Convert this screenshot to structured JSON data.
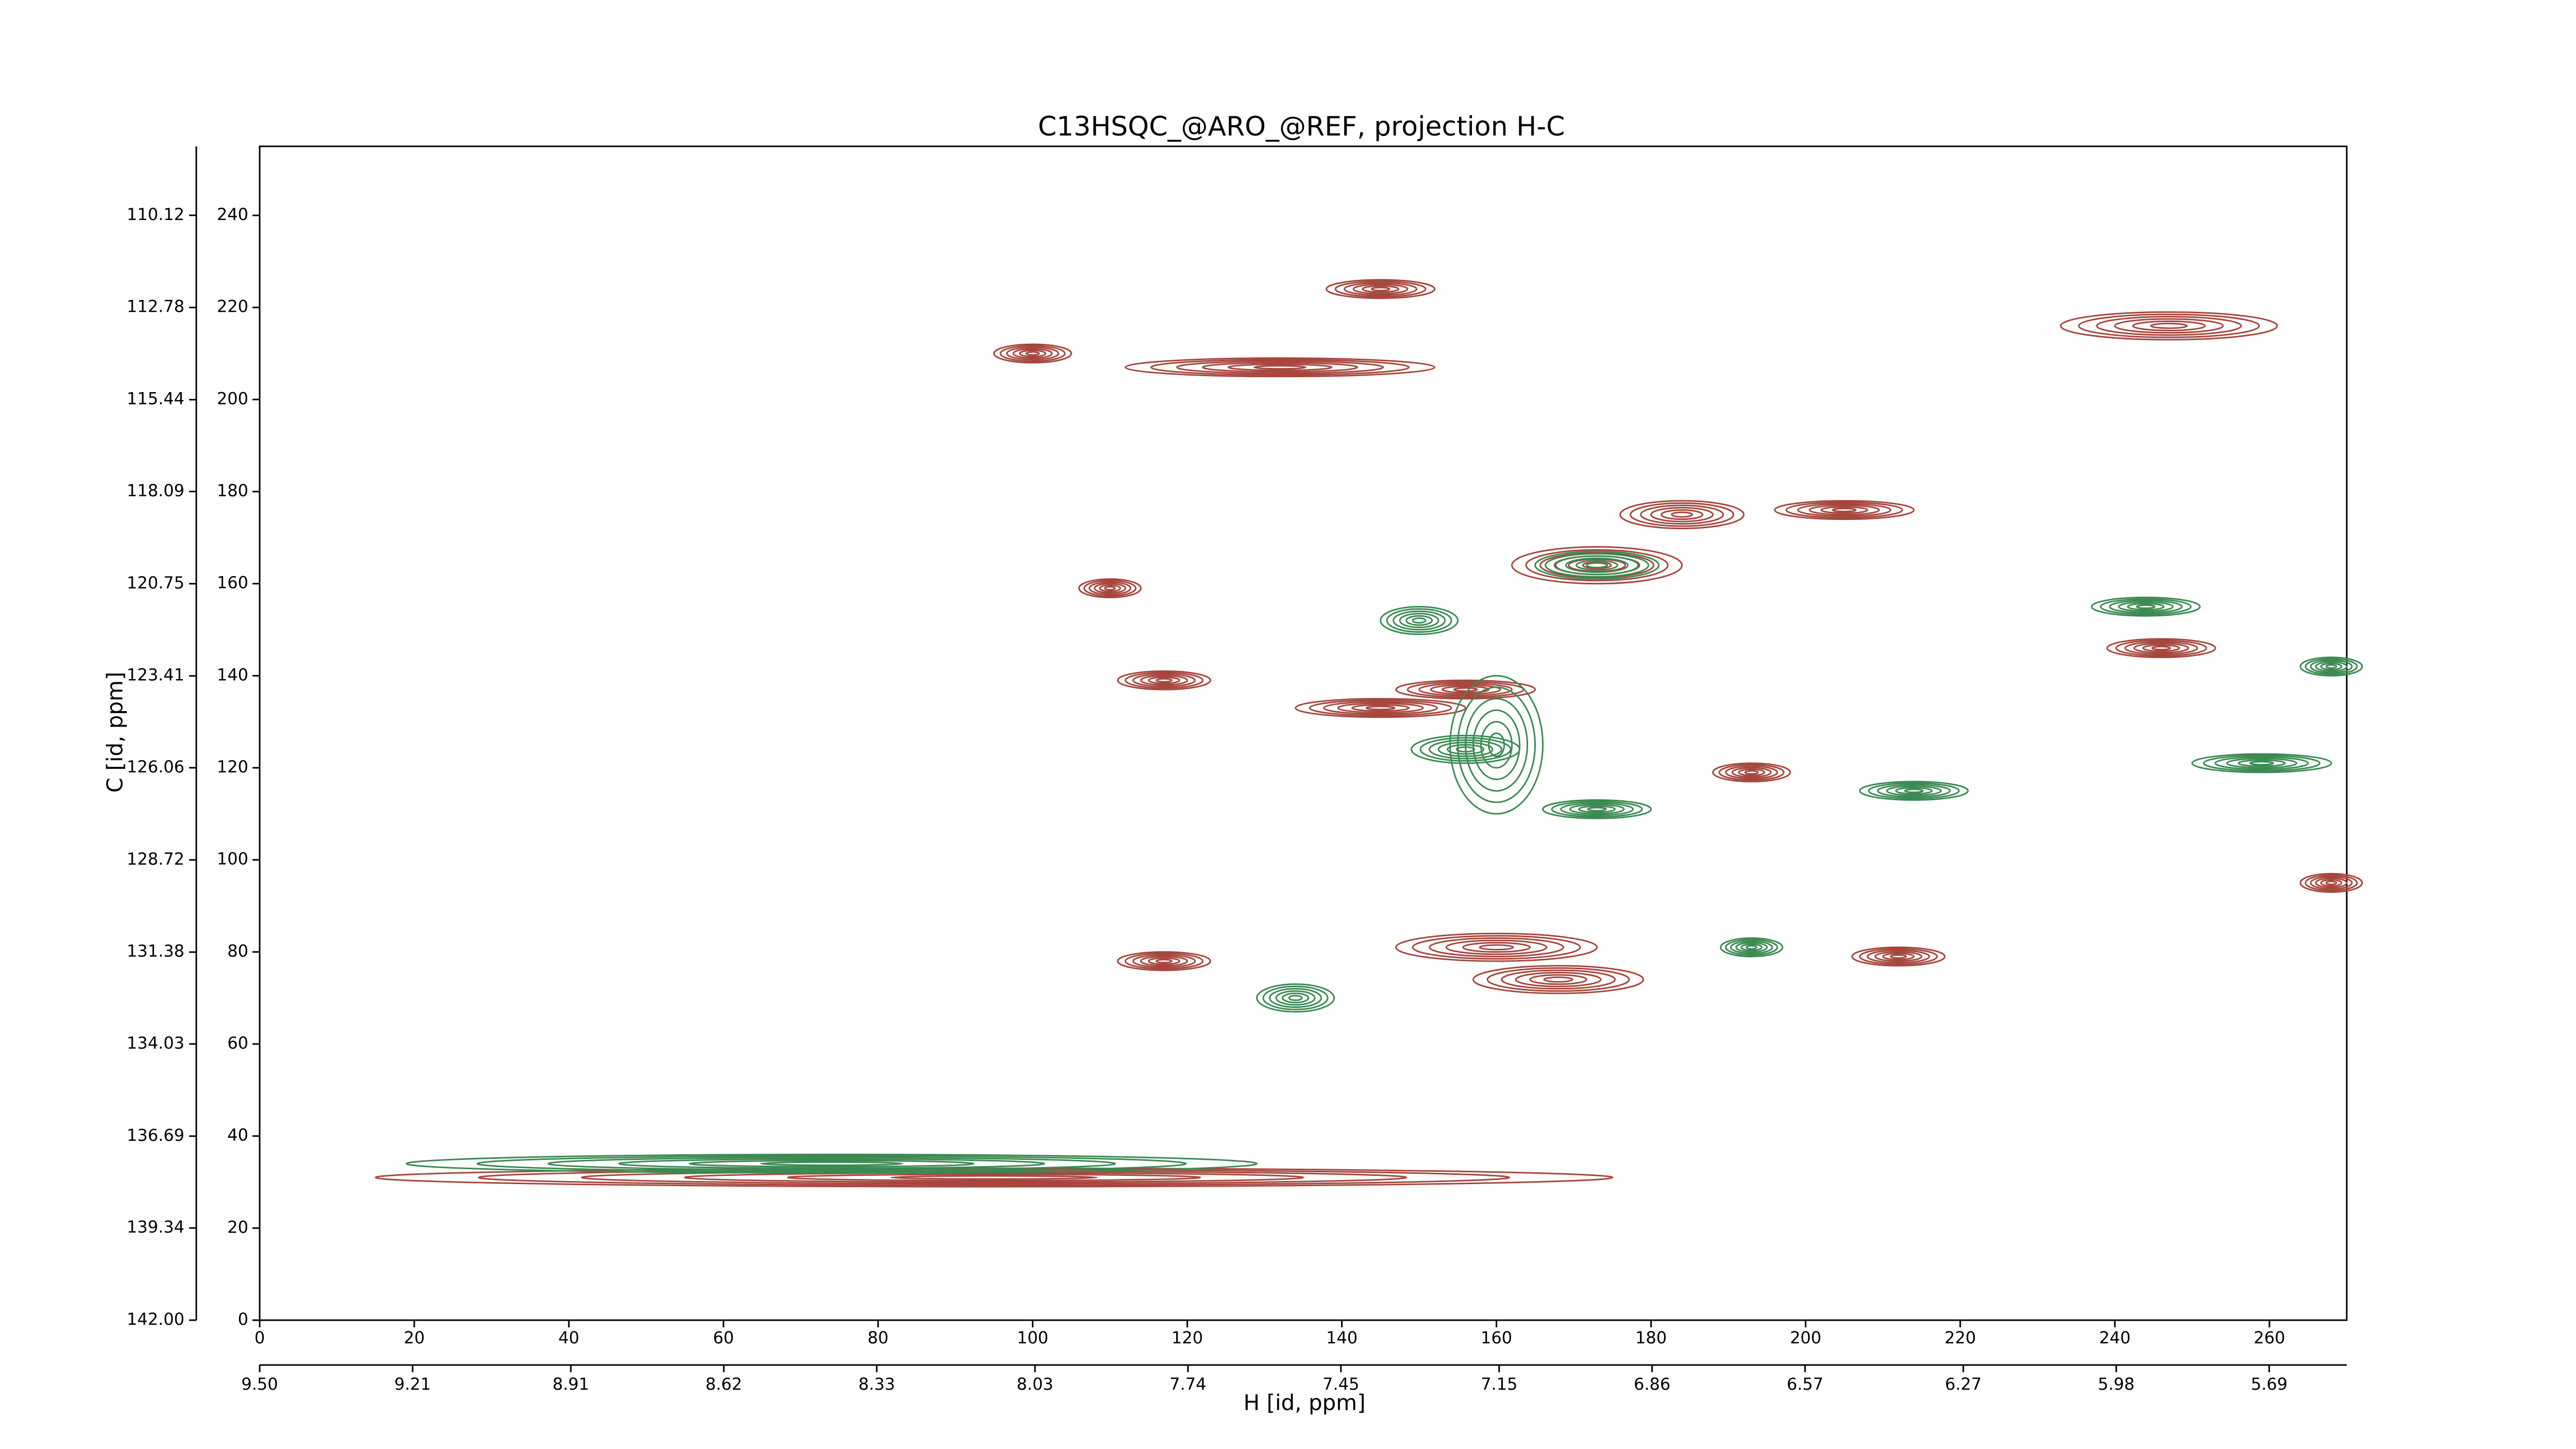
{
  "chart_data": {
    "type": "contour",
    "title": "C13HSQC_@ARO_@REF, projection H-C",
    "xlabel": "H [id, ppm]",
    "ylabel": "C [id, ppm]",
    "xlim": [
      0,
      270
    ],
    "ylim": [
      0,
      255
    ],
    "xticks": [
      0,
      20,
      40,
      60,
      80,
      100,
      120,
      140,
      160,
      180,
      200,
      220,
      240,
      260
    ],
    "yticks": [
      0,
      20,
      40,
      60,
      80,
      100,
      120,
      140,
      160,
      180,
      200,
      220,
      240
    ],
    "x2lim": [
      9.5,
      5.543
    ],
    "x2ticks": [
      {
        "value": 9.5,
        "label": "9.50"
      },
      {
        "value": 9.21,
        "label": "9.21"
      },
      {
        "value": 8.91,
        "label": "8.91"
      },
      {
        "value": 8.62,
        "label": "8.62"
      },
      {
        "value": 8.33,
        "label": "8.33"
      },
      {
        "value": 8.03,
        "label": "8.03"
      },
      {
        "value": 7.74,
        "label": "7.74"
      },
      {
        "value": 7.45,
        "label": "7.45"
      },
      {
        "value": 7.15,
        "label": "7.15"
      },
      {
        "value": 6.86,
        "label": "6.86"
      },
      {
        "value": 6.57,
        "label": "6.57"
      },
      {
        "value": 6.27,
        "label": "6.27"
      },
      {
        "value": 5.98,
        "label": "5.98"
      },
      {
        "value": 5.69,
        "label": "5.69"
      }
    ],
    "y2lim": [
      142.0,
      108.13
    ],
    "y2ticks": [
      {
        "value": 142.0,
        "label": "142.00"
      },
      139.34,
      136.69,
      134.03,
      131.38,
      128.72,
      126.06,
      123.41,
      120.75,
      118.09,
      115.44,
      112.78,
      110.12
    ],
    "series": [
      {
        "color": "#a6463d",
        "x": [
          247,
          132,
          95,
          145,
          173,
          184,
          205,
          246,
          156,
          145,
          160,
          168,
          117,
          117,
          193,
          212,
          100,
          110,
          268
        ],
        "y": [
          216,
          207,
          31,
          224,
          164,
          175,
          176,
          146,
          137,
          133,
          81,
          74,
          78,
          139,
          119,
          79,
          210,
          159,
          95
        ],
        "width": [
          28,
          40,
          160,
          14,
          22,
          16,
          18,
          14,
          18,
          22,
          26,
          22,
          12,
          12,
          10,
          12,
          10,
          8,
          8
        ],
        "height": [
          6,
          4,
          4,
          4,
          8,
          6,
          4,
          4,
          4,
          4,
          6,
          6,
          4,
          4,
          4,
          4,
          4,
          4,
          4
        ]
      },
      {
        "color": "#3b8a52",
        "x": [
          74,
          173,
          244,
          156,
          134,
          173,
          214,
          193,
          259,
          268,
          150,
          160
        ],
        "y": [
          34,
          164,
          155,
          124,
          70,
          111,
          115,
          81,
          121,
          142,
          152,
          125
        ],
        "width": [
          110,
          16,
          14,
          14,
          10,
          14,
          14,
          8,
          18,
          8,
          10,
          12
        ],
        "height": [
          4,
          6,
          4,
          6,
          6,
          4,
          4,
          4,
          4,
          4,
          6,
          30
        ]
      }
    ]
  }
}
